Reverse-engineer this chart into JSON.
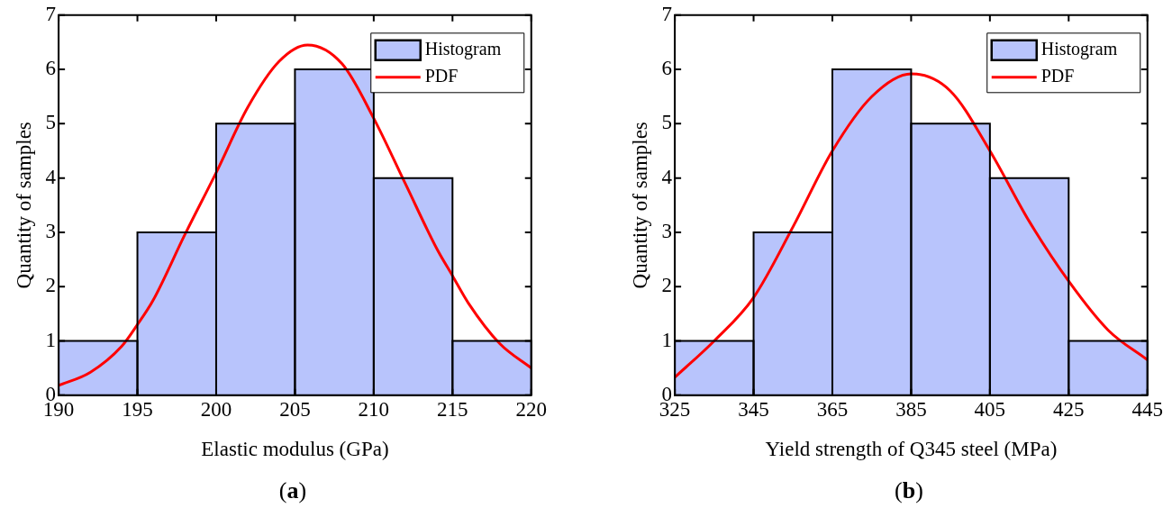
{
  "chart_data": [
    {
      "type": "histogram",
      "xlabel": "Elastic modulus (GPa)",
      "ylabel": "Quantity of samples",
      "bins": [
        190,
        195,
        200,
        205,
        210,
        215,
        220
      ],
      "xlim": [
        190,
        220
      ],
      "xticks": [
        190,
        195,
        200,
        205,
        210,
        215,
        220
      ],
      "ylim": [
        0,
        7
      ],
      "yticks": [
        0,
        1,
        2,
        3,
        4,
        5,
        6,
        7
      ],
      "legend": "top right",
      "grid": false,
      "annotations": [
        "(a)"
      ],
      "series": [
        {
          "name": "Histogram",
          "color": "#b8c4fc",
          "values": [
            1,
            3,
            5,
            6,
            4,
            1
          ]
        },
        {
          "name": "PDF",
          "type": "line",
          "color": "#ff0000",
          "x": [
            190,
            192,
            194,
            195,
            196,
            198,
            200,
            202,
            204,
            205.8,
            208,
            210,
            212,
            214,
            215,
            216,
            218,
            220
          ],
          "values": [
            0.18,
            0.42,
            0.9,
            1.3,
            1.75,
            2.95,
            4.1,
            5.3,
            6.15,
            6.45,
            6.1,
            5.1,
            3.9,
            2.7,
            2.2,
            1.7,
            0.95,
            0.5
          ]
        }
      ]
    },
    {
      "type": "histogram",
      "xlabel": "Yield strength of Q345 steel (MPa)",
      "ylabel": "Quantity of samples",
      "bins": [
        325,
        345,
        365,
        385,
        405,
        425,
        445
      ],
      "xlim": [
        325,
        445
      ],
      "xticks": [
        325,
        345,
        365,
        385,
        405,
        425,
        445
      ],
      "ylim": [
        0,
        7
      ],
      "yticks": [
        0,
        1,
        2,
        3,
        4,
        5,
        6,
        7
      ],
      "legend": "top right",
      "grid": false,
      "annotations": [
        "(b)"
      ],
      "series": [
        {
          "name": "Histogram",
          "color": "#b8c4fc",
          "values": [
            1,
            3,
            6,
            5,
            4,
            1
          ]
        },
        {
          "name": "PDF",
          "type": "line",
          "color": "#ff0000",
          "x": [
            325,
            335,
            345,
            355,
            365,
            375,
            385,
            395,
            405,
            415,
            425,
            435,
            445
          ],
          "values": [
            0.33,
            1.0,
            1.8,
            3.1,
            4.5,
            5.5,
            5.92,
            5.6,
            4.5,
            3.2,
            2.1,
            1.2,
            0.65
          ]
        }
      ]
    }
  ]
}
